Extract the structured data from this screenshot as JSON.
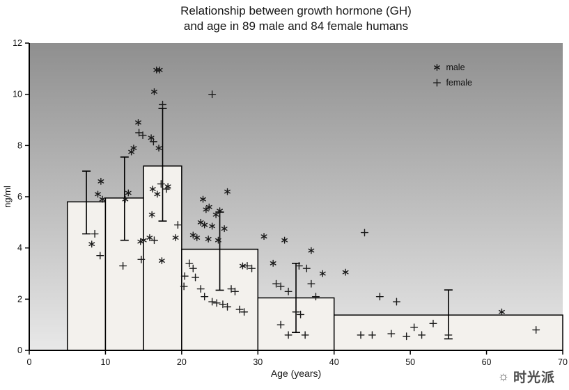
{
  "watermark": {
    "icon": "sun-clock-logo",
    "text": "时光派"
  },
  "chart_data": {
    "type": "bar",
    "title_line1": "Relationship between growth hormone (GH)",
    "title_line2": "and age in 89 male and 84 female humans",
    "xlabel": "Age (years)",
    "ylabel": "ng/ml",
    "xlim": [
      0,
      70
    ],
    "ylim": [
      0,
      12
    ],
    "x_ticks": [
      0,
      10,
      20,
      30,
      40,
      50,
      60,
      70
    ],
    "y_ticks": [
      0,
      2,
      4,
      6,
      8,
      10,
      12
    ],
    "grid": false,
    "legend_position": "top-right-inside",
    "legend": {
      "x_age": 53.5,
      "entries": [
        {
          "marker": "asterisk",
          "label": "male",
          "y_gh": 11.05
        },
        {
          "marker": "plus",
          "label": "female",
          "y_gh": 10.45
        }
      ]
    },
    "bars": [
      {
        "x0": 5,
        "x1": 10,
        "mean": 5.8,
        "err_low": 4.55,
        "err_high": 7.0,
        "err_x": 7.5
      },
      {
        "x0": 10,
        "x1": 15,
        "mean": 5.95,
        "err_low": 4.3,
        "err_high": 7.55,
        "err_x": 12.5
      },
      {
        "x0": 15,
        "x1": 20,
        "mean": 7.2,
        "err_low": 5.05,
        "err_high": 9.45,
        "err_x": 17.5
      },
      {
        "x0": 20,
        "x1": 30,
        "mean": 3.95,
        "err_low": 2.35,
        "err_high": 5.4,
        "err_x": 25
      },
      {
        "x0": 30,
        "x1": 40,
        "mean": 2.05,
        "err_low": 0.7,
        "err_high": 3.4,
        "err_x": 35
      },
      {
        "x0": 40,
        "x1": 70,
        "mean": 1.38,
        "err_low": 0.45,
        "err_high": 2.36,
        "err_x": 55
      }
    ],
    "series": [
      {
        "name": "male",
        "marker": "asterisk",
        "points": [
          [
            8.2,
            4.15
          ],
          [
            9.0,
            6.1
          ],
          [
            9.4,
            6.6
          ],
          [
            9.6,
            5.9
          ],
          [
            12.6,
            5.9
          ],
          [
            13.0,
            6.15
          ],
          [
            13.4,
            7.75
          ],
          [
            13.7,
            7.9
          ],
          [
            14.3,
            8.9
          ],
          [
            14.6,
            4.25
          ],
          [
            15.0,
            4.3
          ],
          [
            16.7,
            10.95
          ],
          [
            17.1,
            10.95
          ],
          [
            16.4,
            10.1
          ],
          [
            16.0,
            8.3
          ],
          [
            17.0,
            7.9
          ],
          [
            16.2,
            6.3
          ],
          [
            16.8,
            6.1
          ],
          [
            18.2,
            6.4
          ],
          [
            16.1,
            5.3
          ],
          [
            15.8,
            4.4
          ],
          [
            17.4,
            3.5
          ],
          [
            19.2,
            4.4
          ],
          [
            26.0,
            6.2
          ],
          [
            22.8,
            5.9
          ],
          [
            23.2,
            5.5
          ],
          [
            23.6,
            5.6
          ],
          [
            24.5,
            5.3
          ],
          [
            25.0,
            5.45
          ],
          [
            22.5,
            5.0
          ],
          [
            23.0,
            4.9
          ],
          [
            24.0,
            4.85
          ],
          [
            21.5,
            4.5
          ],
          [
            22.0,
            4.4
          ],
          [
            23.5,
            4.35
          ],
          [
            24.8,
            4.3
          ],
          [
            25.6,
            4.75
          ],
          [
            28.0,
            3.3
          ],
          [
            30.8,
            4.45
          ],
          [
            32.0,
            3.4
          ],
          [
            33.5,
            4.3
          ],
          [
            37.0,
            3.9
          ],
          [
            38.5,
            3.0
          ],
          [
            41.5,
            3.05
          ],
          [
            62.0,
            1.5
          ]
        ]
      },
      {
        "name": "female",
        "marker": "plus",
        "points": [
          [
            9.3,
            3.7
          ],
          [
            8.6,
            4.55
          ],
          [
            12.3,
            3.3
          ],
          [
            14.4,
            8.5
          ],
          [
            14.9,
            8.4
          ],
          [
            14.7,
            3.55
          ],
          [
            17.5,
            9.6
          ],
          [
            16.3,
            8.15
          ],
          [
            17.3,
            6.5
          ],
          [
            18.0,
            6.3
          ],
          [
            16.4,
            4.3
          ],
          [
            19.5,
            4.9
          ],
          [
            24.0,
            10.0
          ],
          [
            20.4,
            2.9
          ],
          [
            21.0,
            3.4
          ],
          [
            21.5,
            3.2
          ],
          [
            20.3,
            2.5
          ],
          [
            21.8,
            2.85
          ],
          [
            22.5,
            2.4
          ],
          [
            23.0,
            2.1
          ],
          [
            24.0,
            1.9
          ],
          [
            24.6,
            1.85
          ],
          [
            25.4,
            1.8
          ],
          [
            26.0,
            1.7
          ],
          [
            26.5,
            2.4
          ],
          [
            27.0,
            2.3
          ],
          [
            27.6,
            1.6
          ],
          [
            28.2,
            1.5
          ],
          [
            28.6,
            3.3
          ],
          [
            29.2,
            3.2
          ],
          [
            32.4,
            2.6
          ],
          [
            33.0,
            2.5
          ],
          [
            34.0,
            2.3
          ],
          [
            35.4,
            3.3
          ],
          [
            36.4,
            3.2
          ],
          [
            37.0,
            2.6
          ],
          [
            35.0,
            1.5
          ],
          [
            35.6,
            1.4
          ],
          [
            33.0,
            1.0
          ],
          [
            34.0,
            0.6
          ],
          [
            36.2,
            0.6
          ],
          [
            37.6,
            2.1
          ],
          [
            44.0,
            4.6
          ],
          [
            46.0,
            2.1
          ],
          [
            48.2,
            1.9
          ],
          [
            43.5,
            0.6
          ],
          [
            45.0,
            0.6
          ],
          [
            47.5,
            0.65
          ],
          [
            49.5,
            0.55
          ],
          [
            50.5,
            0.9
          ],
          [
            51.5,
            0.6
          ],
          [
            53.0,
            1.05
          ],
          [
            55.0,
            0.6
          ],
          [
            66.5,
            0.8
          ]
        ]
      }
    ],
    "colors": {
      "axis": "#000000",
      "marker": "#1a1a1a",
      "bar_fill": "#f3f1ed",
      "bg_top": "#8f8f8f",
      "bg_bottom": "#e8e8e8",
      "text": "#111111"
    }
  }
}
